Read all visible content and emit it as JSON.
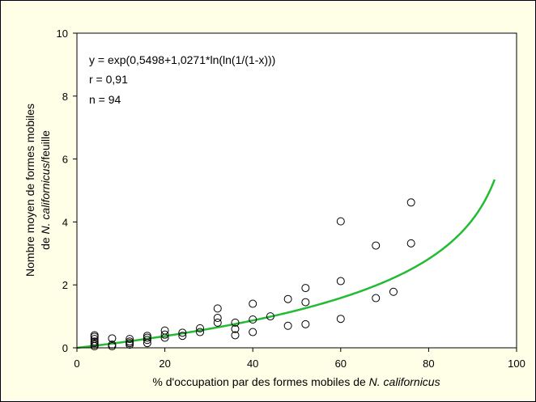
{
  "colors": {
    "background": "#ffffe8",
    "plot": "#ffffff",
    "curve": "#22bb33",
    "axis": "#000000"
  },
  "chart_data": {
    "type": "scatter",
    "xlabel": {
      "before": "% d'occupation par des formes mobiles de ",
      "species": "N. californicus"
    },
    "ylabel": {
      "line1": "Nombre moyen de formes mobiles",
      "line2_before": "de ",
      "line2_species": "N. californicus",
      "line2_after": "/feuille"
    },
    "xlim": [
      0,
      100
    ],
    "ylim": [
      0,
      10
    ],
    "x_ticks": [
      0,
      20,
      40,
      60,
      80,
      100
    ],
    "y_ticks": [
      0,
      2,
      4,
      6,
      8,
      10
    ],
    "grid": false,
    "annotations": {
      "equation": "y =  exp(0,5498+1,0271*ln(ln(1/(1-x)))",
      "r": "r =  0,91",
      "n": "n = 94"
    },
    "fit": {
      "type": "line",
      "formula": "exp(0.5498 + 1.0271*ln(ln(1/(1-x))))",
      "x_range": [
        0,
        95
      ]
    },
    "points": [
      [
        4,
        0.05
      ],
      [
        4,
        0.1
      ],
      [
        4,
        0.15
      ],
      [
        4,
        0.2
      ],
      [
        4,
        0.28
      ],
      [
        4,
        0.35
      ],
      [
        4,
        0.4
      ],
      [
        8,
        0.05
      ],
      [
        8,
        0.1
      ],
      [
        8,
        0.3
      ],
      [
        12,
        0.1
      ],
      [
        12,
        0.15
      ],
      [
        12,
        0.2
      ],
      [
        12,
        0.28
      ],
      [
        16,
        0.15
      ],
      [
        16,
        0.25
      ],
      [
        16,
        0.32
      ],
      [
        16,
        0.38
      ],
      [
        20,
        0.32
      ],
      [
        20,
        0.42
      ],
      [
        20,
        0.55
      ],
      [
        24,
        0.38
      ],
      [
        24,
        0.48
      ],
      [
        28,
        0.5
      ],
      [
        28,
        0.62
      ],
      [
        32,
        0.8
      ],
      [
        32,
        0.95
      ],
      [
        32,
        1.25
      ],
      [
        36,
        0.4
      ],
      [
        36,
        0.6
      ],
      [
        36,
        0.8
      ],
      [
        40,
        0.5
      ],
      [
        40,
        0.9
      ],
      [
        40,
        1.4
      ],
      [
        44,
        1.0
      ],
      [
        48,
        0.7
      ],
      [
        48,
        1.55
      ],
      [
        52,
        0.75
      ],
      [
        52,
        1.45
      ],
      [
        52,
        1.9
      ],
      [
        60,
        0.92
      ],
      [
        60,
        2.12
      ],
      [
        60,
        4.02
      ],
      [
        68,
        1.58
      ],
      [
        68,
        3.25
      ],
      [
        72,
        1.78
      ],
      [
        76,
        3.32
      ],
      [
        76,
        4.62
      ]
    ]
  }
}
